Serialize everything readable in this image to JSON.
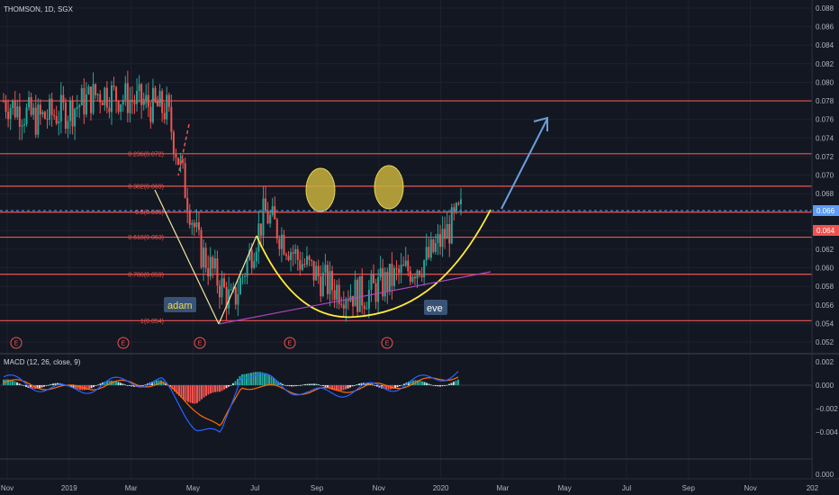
{
  "header": {
    "symbol_title": "THOMSON, 1D, SGX"
  },
  "macd": {
    "title": "MACD (12, 26, close, 9)",
    "ylim": [
      -0.008,
      0.003
    ],
    "ticks": [
      "0.002",
      "0.000",
      "−0.002",
      "−0.004",
      "0.000"
    ]
  },
  "price_axis": {
    "ticks": [
      "0.088",
      "0.086",
      "0.084",
      "0.082",
      "0.080",
      "0.078",
      "0.076",
      "0.074",
      "0.072",
      "0.070",
      "0.068",
      "0.066",
      "0.064",
      "0.062",
      "0.060",
      "0.058",
      "0.056",
      "0.054",
      "0.052"
    ],
    "last_price_tag": "0.066",
    "prev_price_tag": "0.064"
  },
  "time_axis": {
    "labels": [
      "Nov",
      "2019",
      "Mar",
      "May",
      "Jul",
      "Sep",
      "Nov",
      "2020",
      "Mar",
      "May",
      "Jul",
      "Sep",
      "Nov",
      "202"
    ]
  },
  "fib_levels": [
    {
      "label": "0(0.078)",
      "value": 0.078
    },
    {
      "label": "0.236(0.072)",
      "value": 0.0723
    },
    {
      "label": "0.382(0.069)",
      "value": 0.0688
    },
    {
      "label": "0.5(0.066)",
      "value": 0.066
    },
    {
      "label": "0.618(0.063)",
      "value": 0.0633
    },
    {
      "label": "0.786(0.059)",
      "value": 0.0593
    },
    {
      "label": "1(0.054)",
      "value": 0.0543
    }
  ],
  "annotations": {
    "adam": "adam",
    "eve": "eve",
    "event_marker": "E"
  },
  "colors": {
    "background": "#131722",
    "up": "#26a69a",
    "down": "#ef5350",
    "fib": "#ef5350",
    "smile": "#ffeb3b",
    "eyes": "#c9b23c",
    "adam_line": "#f2e6a0",
    "trend": "#ab47bc",
    "arrow": "#6a9fd8",
    "price_line": "#5b9cf6",
    "macd_line": "#2962ff",
    "signal_line": "#ff6d00"
  },
  "chart_data": [
    {
      "type": "candlestick",
      "title": "THOMSON, 1D, SGX",
      "ylim": [
        0.051,
        0.089
      ],
      "series": [
        {
          "name": "Close",
          "x": [
            "Nov 2018",
            "Dec 2018",
            "Jan 2019",
            "Feb 2019",
            "Mar 2019",
            "Apr 2019",
            "May 2019",
            "Jun 2019",
            "Jul 2019",
            "Aug 2019",
            "Sep 2019",
            "Oct 2019",
            "Nov 2019",
            "Dec 2019",
            "Jan 2020"
          ],
          "values": [
            0.078,
            0.076,
            0.077,
            0.079,
            0.078,
            0.077,
            0.062,
            0.056,
            0.066,
            0.061,
            0.058,
            0.057,
            0.059,
            0.061,
            0.066
          ]
        }
      ]
    },
    {
      "type": "line",
      "title": "MACD (12, 26, close, 9)",
      "ylim": [
        -0.008,
        0.003
      ],
      "series": [
        {
          "name": "MACD",
          "x": [
            "Nov 2018",
            "Jan 2019",
            "Mar 2019",
            "Apr 2019",
            "May 2019",
            "Jun 2019",
            "Jul 2019",
            "Sep 2019",
            "Nov 2019",
            "Dec 2019",
            "Jan 2020"
          ],
          "values": [
            0.0005,
            -0.0005,
            0.0004,
            0.0002,
            -0.0035,
            -0.0045,
            0.0012,
            -0.0008,
            -0.0002,
            0.0002,
            0.0012
          ]
        },
        {
          "name": "Signal",
          "x": [
            "Nov 2018",
            "Jan 2019",
            "Mar 2019",
            "Apr 2019",
            "May 2019",
            "Jun 2019",
            "Jul 2019",
            "Sep 2019",
            "Nov 2019",
            "Dec 2019",
            "Jan 2020"
          ],
          "values": [
            0.0003,
            -0.0003,
            0.0002,
            0.0001,
            -0.002,
            -0.0038,
            0.0,
            -0.0006,
            -0.0001,
            0.0001,
            0.0009
          ]
        }
      ]
    }
  ]
}
